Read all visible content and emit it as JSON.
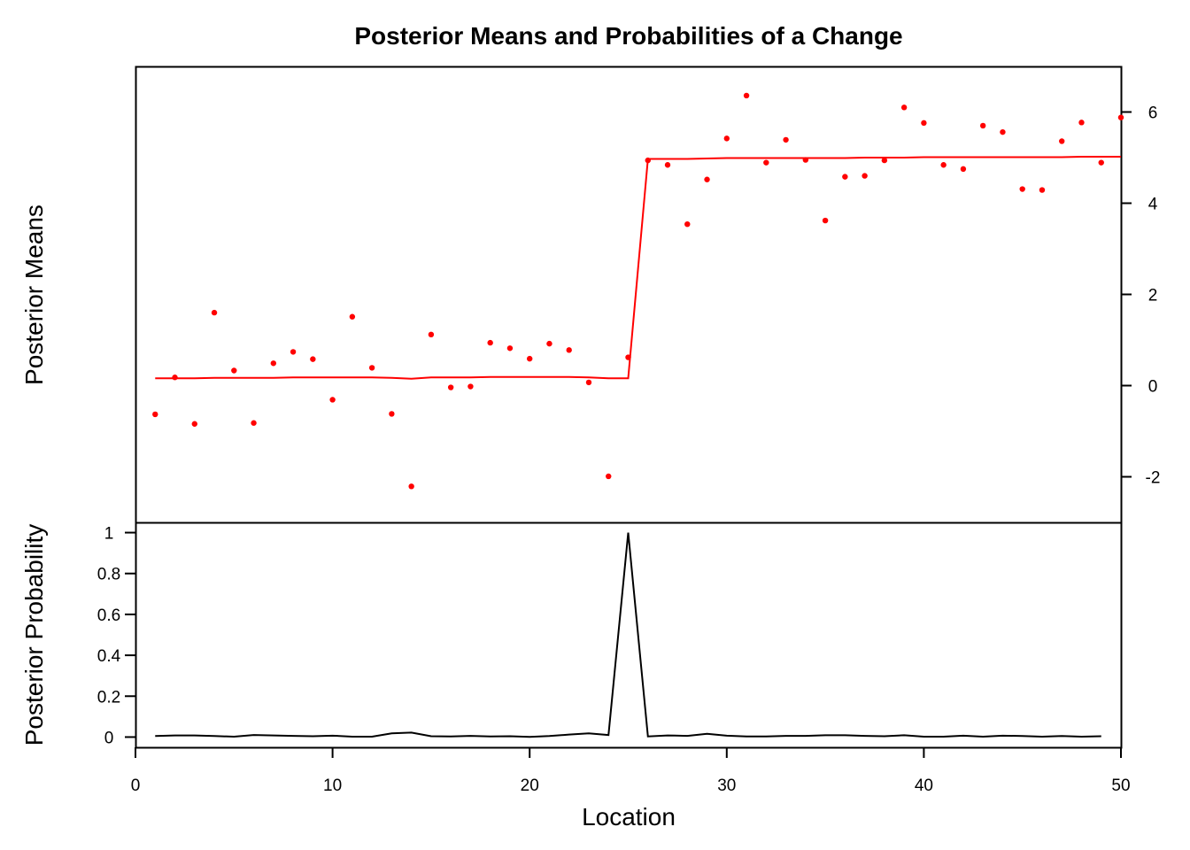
{
  "chart_data": {
    "type": "line",
    "title": "Posterior Means and Probabilities of a Change",
    "xlabel": "Location",
    "xlim": [
      0,
      50
    ],
    "x_ticks": [
      0,
      10,
      20,
      30,
      40,
      50
    ],
    "grid": false,
    "panels": [
      {
        "id": "means",
        "ylabel": "Posterior Means",
        "y_axis_side": "right",
        "ylim": [
          -3,
          7
        ],
        "y_ticks": [
          -2,
          0,
          2,
          4,
          6
        ],
        "series": [
          {
            "kind": "points",
            "color": "#ff0000",
            "x": [
              1,
              2,
              3,
              4,
              5,
              6,
              7,
              8,
              9,
              10,
              11,
              12,
              13,
              14,
              15,
              16,
              17,
              18,
              19,
              20,
              21,
              22,
              23,
              24,
              25,
              26,
              27,
              28,
              29,
              30,
              31,
              32,
              33,
              34,
              35,
              36,
              37,
              38,
              39,
              40,
              41,
              42,
              43,
              44,
              45,
              46,
              47,
              48,
              49,
              50
            ],
            "y": [
              -0.63,
              0.18,
              -0.84,
              1.6,
              0.33,
              -0.82,
              0.49,
              0.74,
              0.58,
              -0.31,
              1.51,
              0.39,
              -0.62,
              -2.21,
              1.12,
              -0.04,
              -0.02,
              0.94,
              0.82,
              0.59,
              0.92,
              0.78,
              0.07,
              -1.99,
              0.62,
              4.94,
              4.84,
              3.54,
              4.52,
              5.42,
              6.36,
              4.89,
              5.39,
              4.95,
              3.62,
              4.58,
              4.6,
              4.94,
              6.1,
              5.76,
              4.84,
              4.75,
              5.7,
              5.56,
              4.31,
              4.29,
              5.36,
              5.77,
              4.89,
              5.88
            ]
          },
          {
            "kind": "line",
            "color": "#ff0000",
            "x": [
              1,
              2,
              3,
              4,
              5,
              6,
              7,
              8,
              9,
              10,
              11,
              12,
              13,
              14,
              15,
              16,
              17,
              18,
              19,
              20,
              21,
              22,
              23,
              24,
              25,
              26,
              27,
              28,
              29,
              30,
              31,
              32,
              33,
              34,
              35,
              36,
              37,
              38,
              39,
              40,
              41,
              42,
              43,
              44,
              45,
              46,
              47,
              48,
              49,
              50
            ],
            "y": [
              0.16,
              0.16,
              0.16,
              0.17,
              0.17,
              0.17,
              0.17,
              0.18,
              0.18,
              0.18,
              0.18,
              0.18,
              0.17,
              0.15,
              0.18,
              0.18,
              0.18,
              0.19,
              0.19,
              0.19,
              0.19,
              0.19,
              0.18,
              0.16,
              0.16,
              4.97,
              4.97,
              4.97,
              4.98,
              4.99,
              4.99,
              4.99,
              4.99,
              4.99,
              4.99,
              4.99,
              5.0,
              5.0,
              5.0,
              5.01,
              5.01,
              5.01,
              5.01,
              5.01,
              5.01,
              5.01,
              5.01,
              5.02,
              5.02,
              5.02
            ]
          }
        ]
      },
      {
        "id": "probability",
        "ylabel": "Posterior Probability",
        "y_axis_side": "left",
        "ylim": [
          -0.05,
          1.05
        ],
        "y_ticks": [
          0,
          0.2,
          0.4,
          0.6,
          0.8,
          1
        ],
        "series": [
          {
            "kind": "line",
            "color": "#000000",
            "x": [
              1,
              2,
              3,
              4,
              5,
              6,
              7,
              8,
              9,
              10,
              11,
              12,
              13,
              14,
              15,
              16,
              17,
              18,
              19,
              20,
              21,
              22,
              23,
              24,
              25,
              26,
              27,
              28,
              29,
              30,
              31,
              32,
              33,
              34,
              35,
              36,
              37,
              38,
              39,
              40,
              41,
              42,
              43,
              44,
              45,
              46,
              47,
              48,
              49
            ],
            "y": [
              0.005,
              0.008,
              0.008,
              0.005,
              0.002,
              0.01,
              0.008,
              0.006,
              0.004,
              0.007,
              0.002,
              0.002,
              0.018,
              0.022,
              0.004,
              0.003,
              0.006,
              0.003,
              0.004,
              0.001,
              0.005,
              0.012,
              0.018,
              0.01,
              1,
              0.003,
              0.008,
              0.006,
              0.016,
              0.007,
              0.003,
              0.003,
              0.006,
              0.006,
              0.009,
              0.009,
              0.006,
              0.004,
              0.009,
              0.002,
              0.002,
              0.007,
              0.002,
              0.007,
              0.005,
              0.002,
              0.005,
              0.002,
              0.004
            ]
          }
        ]
      }
    ]
  }
}
